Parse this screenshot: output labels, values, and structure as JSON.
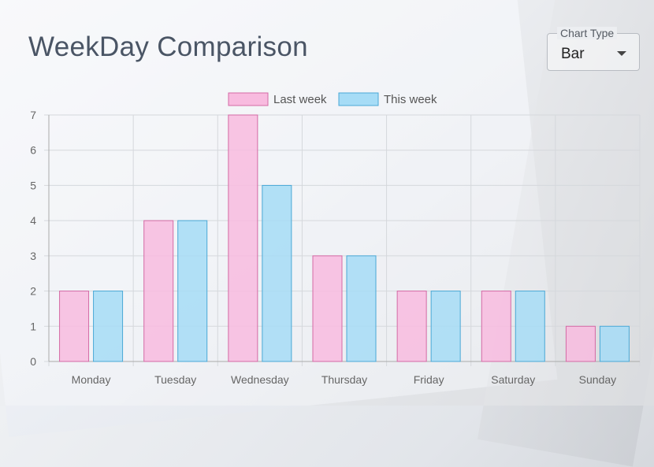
{
  "page": {
    "title": "WeekDay Comparison"
  },
  "chart_type_select": {
    "label": "Chart Type",
    "value": "Bar"
  },
  "colors": {
    "last_week_fill": "#f8bbdf",
    "last_week_stroke": "#d46aa5",
    "this_week_fill": "#a6dcf6",
    "this_week_stroke": "#4aa8d6",
    "grid": "#d5d8dc",
    "axis": "#aaa"
  },
  "chart_data": {
    "type": "bar",
    "categories": [
      "Monday",
      "Tuesday",
      "Wednesday",
      "Thursday",
      "Friday",
      "Saturday",
      "Sunday"
    ],
    "series": [
      {
        "name": "Last week",
        "values": [
          2,
          4,
          7,
          3,
          2,
          2,
          1
        ]
      },
      {
        "name": "This week",
        "values": [
          2,
          4,
          5,
          3,
          2,
          2,
          1
        ]
      }
    ],
    "y_ticks": [
      "0",
      "1",
      "2",
      "3",
      "4",
      "5",
      "6",
      "7"
    ],
    "ylim": [
      0,
      7
    ],
    "grid": true,
    "legend_position": "top"
  }
}
